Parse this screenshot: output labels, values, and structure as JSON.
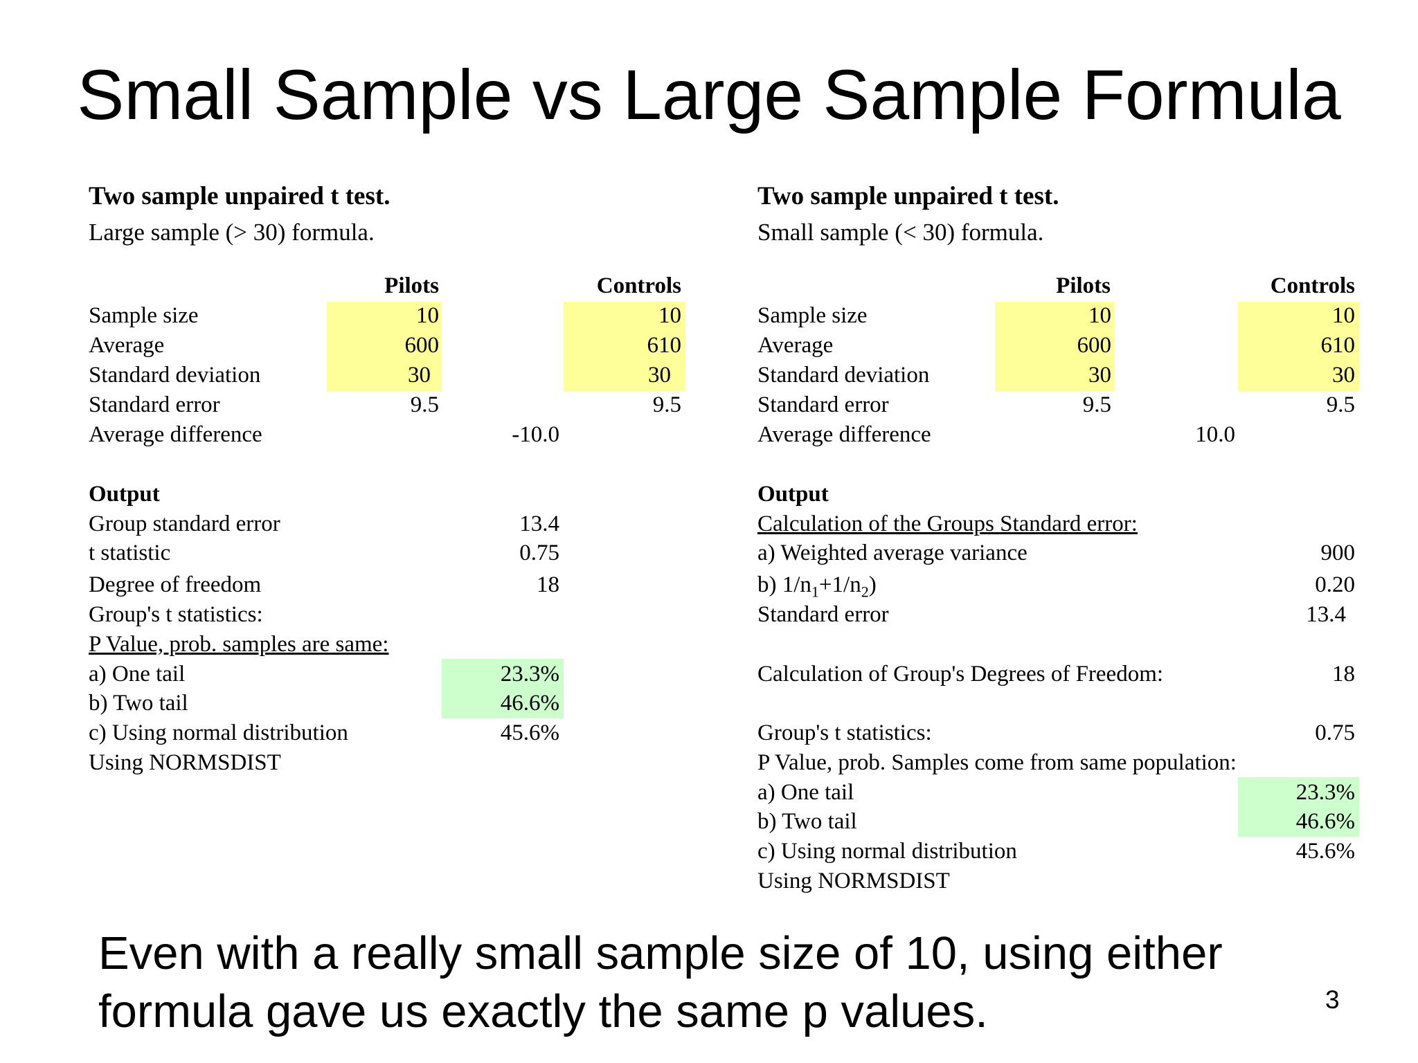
{
  "slide": {
    "title": "Small Sample vs Large Sample Formula",
    "caption": "Even with a really small sample size of 10, using either formula gave us exactly the same p values.",
    "page_number": "3"
  },
  "left": {
    "heading": "Two sample unpaired t test.",
    "subheading": "Large sample (> 30) formula.",
    "col_pilots": "Pilots",
    "col_controls": "Controls",
    "rows": [
      {
        "label": "Sample size",
        "pilots": "10",
        "controls": "10"
      },
      {
        "label": "Average",
        "pilots": "600",
        "controls": "610"
      },
      {
        "label": "Standard deviation",
        "pilots": "30",
        "controls": "30"
      },
      {
        "label": "Standard error",
        "pilots": "9.5",
        "controls": "9.5"
      }
    ],
    "avg_diff_label": "Average difference",
    "avg_diff_value": "-10.0",
    "output_label": "Output",
    "output_rows": [
      {
        "label": "Group standard error",
        "value": "13.4"
      },
      {
        "label": "t statistic",
        "value": "0.75"
      },
      {
        "label": "Degree of freedom",
        "value": "18"
      }
    ],
    "group_t_label": "Group's t statistics:",
    "p_value_label": "P Value, prob. samples are same:",
    "one_tail_label": "a) One tail",
    "one_tail_value": "23.3%",
    "two_tail_label": "b) Two tail",
    "two_tail_value": "46.6%",
    "normal_label": "c) Using normal distribution",
    "normal_value": "45.6%",
    "normsdist_label": "Using NORMSDIST"
  },
  "right": {
    "heading": "Two sample unpaired t test.",
    "subheading": "Small sample (< 30) formula.",
    "col_pilots": "Pilots",
    "col_controls": "Controls",
    "rows": [
      {
        "label": "Sample size",
        "pilots": "10",
        "controls": "10"
      },
      {
        "label": "Average",
        "pilots": "600",
        "controls": "610"
      },
      {
        "label": "Standard deviation",
        "pilots": "30",
        "controls": "30"
      },
      {
        "label": "Standard error",
        "pilots": "9.5",
        "controls": "9.5"
      }
    ],
    "avg_diff_label": "Average difference",
    "avg_diff_value": "10.0",
    "output_label": "Output",
    "calc_se_label": "Calculation of the Groups Standard error:",
    "weighted_var_label": "a) Weighted average variance",
    "weighted_var_value": "900",
    "inv_n_prefix": "b) 1/n",
    "inv_n_sub1": "1",
    "inv_n_mid": "+1/n",
    "inv_n_sub2": "2",
    "inv_n_suffix": ")",
    "inv_n_value": "0.20",
    "std_err_label": "Standard error",
    "std_err_value": "13.4",
    "dof_label": "Calculation of Group's Degrees of Freedom:",
    "dof_value": "18",
    "group_t_label": "Group's t statistics:",
    "group_t_value": "0.75",
    "p_value_label": "P Value, prob. Samples come from same population:",
    "one_tail_label": "a) One tail",
    "one_tail_value": "23.3%",
    "two_tail_label": "b) Two tail",
    "two_tail_value": "46.6%",
    "normal_label": "c) Using normal distribution",
    "normal_value": "45.6%",
    "normsdist_label": "Using NORMSDIST"
  },
  "colors": {
    "input_highlight": "#ffff99",
    "result_highlight": "#ccffcc"
  }
}
